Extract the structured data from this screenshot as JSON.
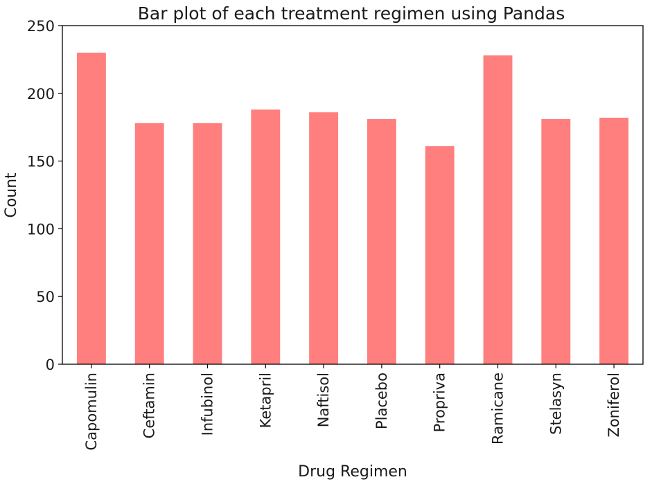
{
  "chart_data": {
    "type": "bar",
    "title": "Bar plot of each treatment regimen using Pandas",
    "xlabel": "Drug Regimen",
    "ylabel": "Count",
    "categories": [
      "Capomulin",
      "Ceftamin",
      "Infubinol",
      "Ketapril",
      "Naftisol",
      "Placebo",
      "Propriva",
      "Ramicane",
      "Stelasyn",
      "Zoniferol"
    ],
    "values": [
      230,
      178,
      178,
      188,
      186,
      181,
      161,
      228,
      181,
      182
    ],
    "ylim": [
      0,
      250
    ],
    "yticks": [
      0,
      50,
      100,
      150,
      200,
      250
    ],
    "bar_color": "#ff7f7f",
    "grid": false,
    "legend": false
  }
}
